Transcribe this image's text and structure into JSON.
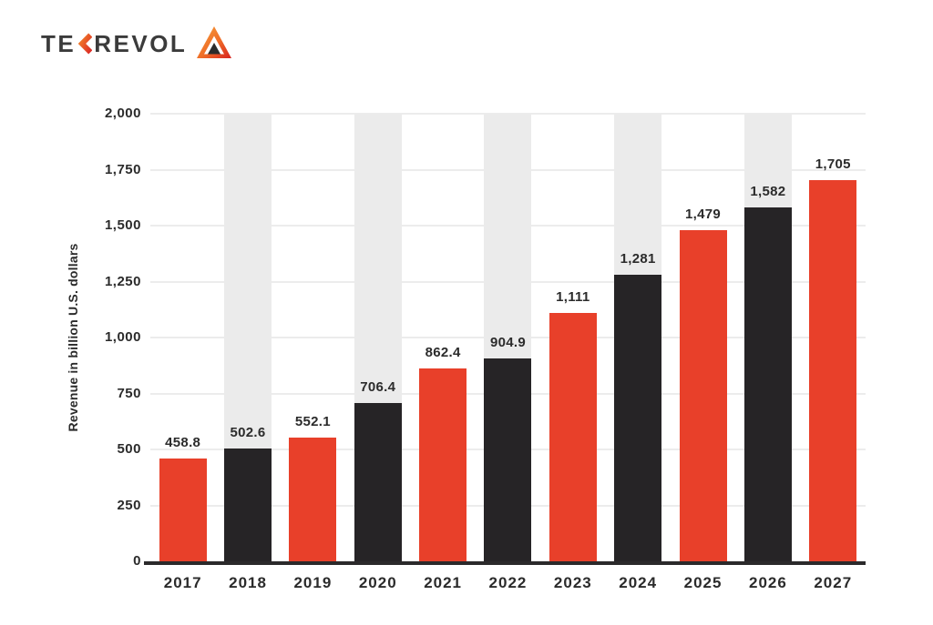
{
  "logo": {
    "text_prefix": "TE",
    "text_suffix": "REVOL",
    "colors": {
      "text": "#3b3b3b",
      "orange": "#f6a33c",
      "red": "#d7231f",
      "chevron_orange": "#f07b28",
      "chevron_red": "#dc2b26",
      "mark_dark": "#2b2b2b"
    }
  },
  "chart_data": {
    "type": "bar",
    "title": "",
    "categories": [
      "2017",
      "2018",
      "2019",
      "2020",
      "2021",
      "2022",
      "2023",
      "2024",
      "2025",
      "2026",
      "2027"
    ],
    "values": [
      458.8,
      502.6,
      552.1,
      706.4,
      862.4,
      904.9,
      1111,
      1281,
      1479,
      1582,
      1705
    ],
    "value_labels": [
      "458.8",
      "502.6",
      "552.1",
      "706.4",
      "862.4",
      "904.9",
      "1,111",
      "1,281",
      "1,479",
      "1,582",
      "1,705"
    ],
    "xlabel": "",
    "ylabel": "Revenue in billion U.S. dollars",
    "ylim": [
      0,
      2000
    ],
    "ytick_interval": 250,
    "ytick_labels": [
      "0",
      "250",
      "500",
      "750",
      "1,000",
      "1,250",
      "1,500",
      "1,750",
      "2,000"
    ],
    "grid": true,
    "legend": false,
    "bar_color_odd_years": "#e8402a",
    "bar_color_even_years": "#262426",
    "backdrop_color": "#ebebeb",
    "backdrop_column_indices": [
      1,
      3,
      5,
      7,
      9
    ],
    "gridline_color": "#ececec",
    "axis_line_color": "#2b2a2b"
  }
}
